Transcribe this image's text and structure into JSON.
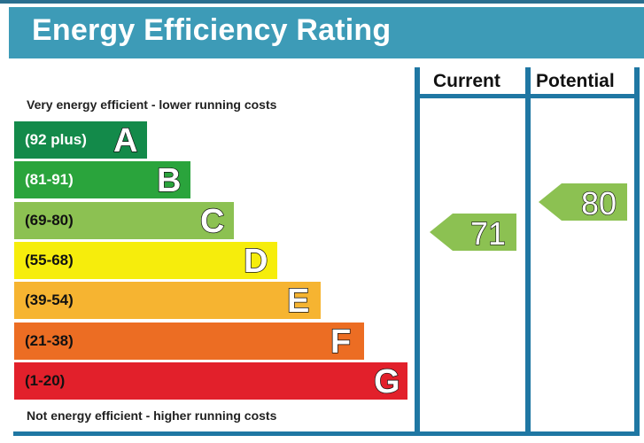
{
  "title": "Energy Efficiency Rating",
  "columns": {
    "current": "Current",
    "potential": "Potential"
  },
  "top_caption": "Very energy efficient - lower running costs",
  "bottom_caption": "Not energy efficient - higher running costs",
  "colors": {
    "header": "#3d9bb7",
    "rules": "#1f77a3",
    "arrow": "#8cc152"
  },
  "chart_data": {
    "type": "bar",
    "bands": [
      {
        "letter": "A",
        "range": "(92 plus)",
        "color": "#138a4a",
        "dark_text": false
      },
      {
        "letter": "B",
        "range": "(81-91)",
        "color": "#2aa43c",
        "dark_text": false
      },
      {
        "letter": "C",
        "range": "(69-80)",
        "color": "#8cc152",
        "dark_text": true
      },
      {
        "letter": "D",
        "range": "(55-68)",
        "color": "#f6ed0c",
        "dark_text": true
      },
      {
        "letter": "E",
        "range": "(39-54)",
        "color": "#f6b431",
        "dark_text": true
      },
      {
        "letter": "F",
        "range": "(21-38)",
        "color": "#ec6d23",
        "dark_text": true
      },
      {
        "letter": "G",
        "range": "(1-20)",
        "color": "#e2202b",
        "dark_text": true
      }
    ],
    "current": {
      "value": 71,
      "band": "C"
    },
    "potential": {
      "value": 80,
      "band": "C"
    }
  }
}
